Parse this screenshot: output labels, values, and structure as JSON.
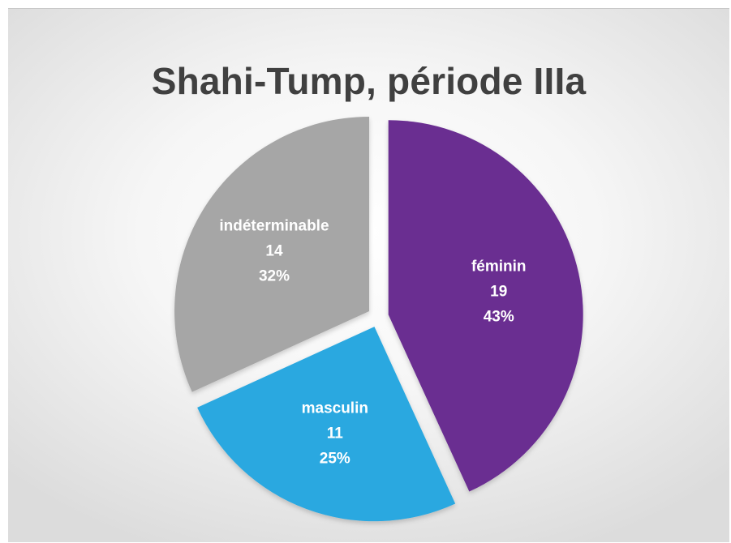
{
  "chart_data": {
    "type": "pie",
    "title": "Shahi-Tump, période IIIa",
    "slices": [
      {
        "label": "féminin",
        "value": 19,
        "percent": "43%",
        "color": "#6a2d91"
      },
      {
        "label": "masculin",
        "value": 11,
        "percent": "25%",
        "color": "#29a8e0"
      },
      {
        "label": "indéterminable",
        "value": 14,
        "percent": "32%",
        "color": "#a6a6a6"
      }
    ],
    "legend": "none",
    "exploded": true
  }
}
